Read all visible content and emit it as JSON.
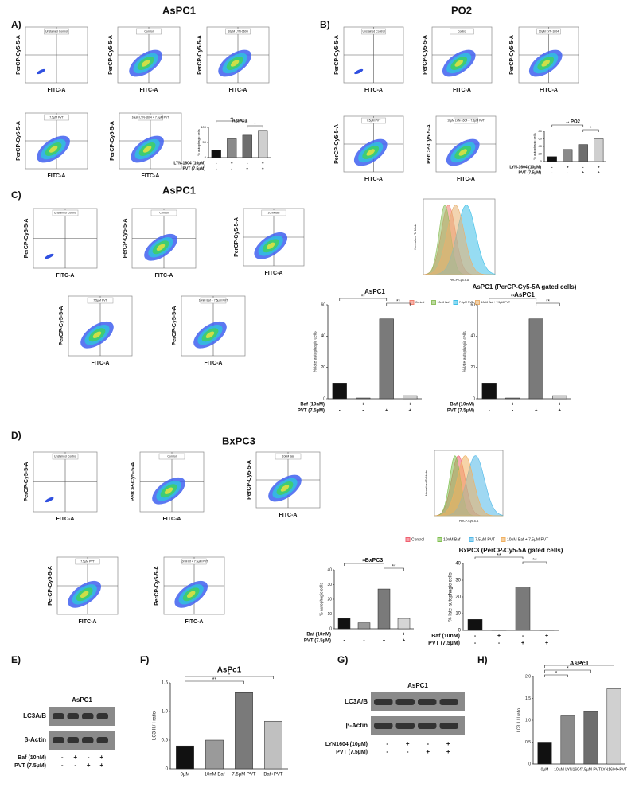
{
  "panels": {
    "A": {
      "letter": "A)",
      "title": "AsPC1",
      "flows": [
        {
          "title": "Unstained Control",
          "xlabel": "FITC-A",
          "ylabel": "PerCP-Cy5-5-A"
        },
        {
          "title": "Control",
          "xlabel": "FITC-A",
          "ylabel": "PerCP-Cy5-5-A"
        },
        {
          "title": "10µM LYN-1604",
          "xlabel": "FITC-A",
          "ylabel": "PerCP-Cy5-5-A"
        },
        {
          "title": "7.5µM PVT",
          "xlabel": "FITC-A",
          "ylabel": "PerCP-Cy5-5-A"
        },
        {
          "title": "10µM LYN-1604 + 7.5µM PVT",
          "xlabel": "FITC-A",
          "ylabel": "PerCP-Cy5-5-A"
        }
      ],
      "bar": {
        "title": "AsPC1",
        "ylabel": "% autophagic cells",
        "ylim": [
          0,
          100
        ],
        "yticks": [
          0,
          50,
          100
        ],
        "values": [
          25,
          62,
          74,
          90
        ],
        "colors": [
          "#111111",
          "#8a8a8a",
          "#6e6e6e",
          "#cfcfcf"
        ],
        "rows": [
          {
            "label": "LYN-1604 (10µM)",
            "signs": [
              "-",
              "+",
              "-",
              "+"
            ]
          },
          {
            "label": "PVT (7.5µM)",
            "signs": [
              "-",
              "-",
              "+",
              "+"
            ]
          }
        ],
        "significance": [
          "**",
          "*"
        ]
      }
    },
    "B": {
      "letter": "B)",
      "title": "PO2",
      "flows": [
        {
          "title": "Unstained Control",
          "xlabel": "FITC-A",
          "ylabel": "PerCP-Cy5-5-A"
        },
        {
          "title": "Control",
          "xlabel": "FITC-A",
          "ylabel": "PerCP-Cy5-5-A"
        },
        {
          "title": "10µM LYN-1604",
          "xlabel": "FITC-A",
          "ylabel": "PerCP-Cy5-5-A"
        },
        {
          "title": "7.5µM PVT",
          "xlabel": "FITC-A",
          "ylabel": "PerCP-Cy5-5-A"
        },
        {
          "title": "10µM LYN-1604 + 7.5µM PVT",
          "xlabel": "FITC-A",
          "ylabel": "PerCP-Cy5-5-A"
        }
      ],
      "bar": {
        "title": "PO2",
        "ylabel": "% autophagic cells",
        "ylim": [
          0,
          80
        ],
        "yticks": [
          0,
          20,
          40,
          60,
          80
        ],
        "values": [
          13,
          32,
          45,
          60
        ],
        "colors": [
          "#111111",
          "#8a8a8a",
          "#6e6e6e",
          "#cfcfcf"
        ],
        "rows": [
          {
            "label": "LYN-1604 (10µM)",
            "signs": [
              "-",
              "+",
              "-",
              "+"
            ]
          },
          {
            "label": "PVT (7.5µM)",
            "signs": [
              "-",
              "-",
              "+",
              "+"
            ]
          }
        ],
        "significance": [
          "**",
          "*"
        ]
      }
    },
    "C": {
      "letter": "C)",
      "title": "AsPC1",
      "flows": [
        {
          "title": "Unstained Control",
          "xlabel": "FITC-A",
          "ylabel": "PerCP-Cy5-5-A"
        },
        {
          "title": "Control",
          "xlabel": "FITC-A",
          "ylabel": "PerCP-Cy5-5-A"
        },
        {
          "title": "10nM Baf",
          "xlabel": "FITC-A",
          "ylabel": "PerCP-Cy5-5-A"
        },
        {
          "title": "7.5µM PVT",
          "xlabel": "FITC-A",
          "ylabel": "PerCP-Cy5-5-A"
        },
        {
          "title": "10nM Baf + 7.5µM PVT",
          "xlabel": "FITC-A",
          "ylabel": "PerCP-Cy5-5-A"
        }
      ],
      "histogram": {
        "xlabel": "PerCP-Cy5-5-A",
        "ylabel": "Normalized To Mode",
        "legend": [
          {
            "name": "Control",
            "color": "#f08070"
          },
          {
            "name": "10nM Baf",
            "color": "#90c060"
          },
          {
            "name": "7.5µM PVT",
            "color": "#40c0e8"
          },
          {
            "name": "10nM Baf + 7.5µM PVT",
            "color": "#e8b070"
          }
        ]
      },
      "bars": [
        {
          "title": "AsPC1",
          "ylabel": "% late autophagic cells",
          "ylim": [
            0,
            60
          ],
          "yticks": [
            0,
            20,
            40,
            60
          ],
          "values": [
            10,
            0.5,
            51,
            2
          ],
          "colors": [
            "#111111",
            "#8a8a8a",
            "#7a7a7a",
            "#cfcfcf"
          ],
          "rows": [
            {
              "label": "Baf (10nM)",
              "signs": [
                "-",
                "+",
                "-",
                "+"
              ]
            },
            {
              "label": "PVT (7.5µM)",
              "signs": [
                "-",
                "-",
                "+",
                "+"
              ]
            }
          ],
          "significance": [
            "**",
            "**"
          ]
        },
        {
          "title": "AsPC1 (PerCP-Cy5-5A gated cells)",
          "subtitle": "AsPC1",
          "ylabel": "% late autophagic cells",
          "ylim": [
            0,
            60
          ],
          "yticks": [
            0,
            20,
            40,
            60
          ],
          "values": [
            10,
            0.5,
            51,
            2
          ],
          "colors": [
            "#111111",
            "#8a8a8a",
            "#7a7a7a",
            "#cfcfcf"
          ],
          "rows": [
            {
              "label": "Baf (10nM)",
              "signs": [
                "-",
                "+",
                "-",
                "+"
              ]
            },
            {
              "label": "PVT (7.5µM)",
              "signs": [
                "-",
                "-",
                "+",
                "+"
              ]
            }
          ],
          "significance": [
            "**",
            "**"
          ]
        }
      ]
    },
    "D": {
      "letter": "D)",
      "title": "BxPC3",
      "flows": [
        {
          "title": "Unstained Control",
          "xlabel": "FITC-A",
          "ylabel": "PerCP-Cy5-5-A"
        },
        {
          "title": "Control",
          "xlabel": "FITC-A",
          "ylabel": "PerCP-Cy5-5-A"
        },
        {
          "title": "10nM Baf",
          "xlabel": "FITC-A",
          "ylabel": "PerCP-Cy5-5-A"
        },
        {
          "title": "7.5µM PVT",
          "xlabel": "FITC-A",
          "ylabel": "PerCP-Cy5-5-A"
        },
        {
          "title": "10nM Bf + 7.5µM PVT",
          "xlabel": "FITC-A",
          "ylabel": "PerCP-Cy5-5-A"
        }
      ],
      "histogram": {
        "xlabel": "PerCP-Cy5-5-A",
        "ylabel": "Normalized To Mode",
        "legend": [
          {
            "name": "Control",
            "color": "#f06070"
          },
          {
            "name": "10nM Baf",
            "color": "#80c050"
          },
          {
            "name": "7.5µM PVT",
            "color": "#50b8e8"
          },
          {
            "name": "10nM Baf + 7.5µM PVT",
            "color": "#f0b060"
          }
        ]
      },
      "bars": [
        {
          "title": "BxPC3",
          "ylabel": "% autophagic cells",
          "ylim": [
            0,
            40
          ],
          "yticks": [
            0,
            10,
            20,
            30,
            40
          ],
          "values": [
            7,
            4,
            27,
            7
          ],
          "colors": [
            "#111111",
            "#9a9a9a",
            "#7a7a7a",
            "#d5d5d5"
          ],
          "rows": [
            {
              "label": "Baf (10nM)",
              "signs": [
                "-",
                "+",
                "-",
                "+"
              ]
            },
            {
              "label": "PVT (7.5µM)",
              "signs": [
                "-",
                "-",
                "+",
                "+"
              ]
            }
          ],
          "significance": [
            "**",
            "**"
          ]
        },
        {
          "title": "BxPC3 (PerCP-Cy5-5A gated cells)",
          "ylabel": "% late autophagic cells",
          "ylim": [
            0,
            40
          ],
          "yticks": [
            0,
            10,
            20,
            30,
            40
          ],
          "values": [
            6.5,
            0.2,
            26,
            0.3
          ],
          "colors": [
            "#111111",
            "#9a9a9a",
            "#7a7a7a",
            "#d5d5d5"
          ],
          "rows": [
            {
              "label": "Baf (10nM)",
              "signs": [
                "-",
                "+",
                "-",
                "+"
              ]
            },
            {
              "label": "PVT (7.5µM)",
              "signs": [
                "-",
                "-",
                "+",
                "+"
              ]
            }
          ],
          "significance": [
            "**",
            "**"
          ]
        }
      ]
    },
    "E": {
      "letter": "E)",
      "title": "AsPC1",
      "bands": [
        "LC3A/B",
        "β-Actin"
      ],
      "rows": [
        {
          "label": "Baf (10nM)",
          "signs": [
            "-",
            "+",
            "-",
            "+"
          ]
        },
        {
          "label": "PVT (7.5µM)",
          "signs": [
            "-",
            "-",
            "+",
            "+"
          ]
        }
      ]
    },
    "F": {
      "letter": "F)",
      "bar": {
        "title": "AsPc1",
        "ylabel": "LC3 II / I ratio",
        "ylim": [
          0,
          1.5
        ],
        "yticks": [
          0,
          0.5,
          {
            "value": 1,
            "label": "1.0"
          },
          1.5
        ],
        "values": [
          0.4,
          0.5,
          1.33,
          0.83
        ],
        "colors": [
          "#111111",
          "#9a9a9a",
          "#7a7a7a",
          "#c0c0c0"
        ],
        "categories": [
          "0µM",
          "10nM Baf",
          "7.5µM PVT",
          "Baf+PVT"
        ],
        "significance": [
          "**",
          "*"
        ]
      }
    },
    "G": {
      "letter": "G)",
      "title": "AsPC1",
      "bands": [
        "LC3A/B",
        "β-Actin"
      ],
      "rows": [
        {
          "label": "LYN1604 (10µM)",
          "signs": [
            "-",
            "+",
            "-",
            "+"
          ]
        },
        {
          "label": "PVT (7.5µM)",
          "signs": [
            "-",
            "-",
            "+",
            "+"
          ]
        }
      ]
    },
    "H": {
      "letter": "H)",
      "bar": {
        "title": "AsPc1",
        "ylabel": "LC3 II / I ratio",
        "ylim": [
          0,
          2
        ],
        "yticks": [
          0,
          0.5,
          {
            "value": 1,
            "label": "1.0"
          },
          1.5,
          {
            "value": 2,
            "label": "2.0"
          }
        ],
        "values": [
          0.5,
          1.1,
          1.2,
          1.72
        ],
        "colors": [
          "#111111",
          "#8a8a8a",
          "#6e6e6e",
          "#d0d0d0"
        ],
        "categories": [
          "0µM",
          "10µM LYN1604",
          "7.5µM PVT",
          "LYN1604+PVT"
        ],
        "significance": [
          "*",
          "*",
          "**"
        ]
      }
    }
  }
}
